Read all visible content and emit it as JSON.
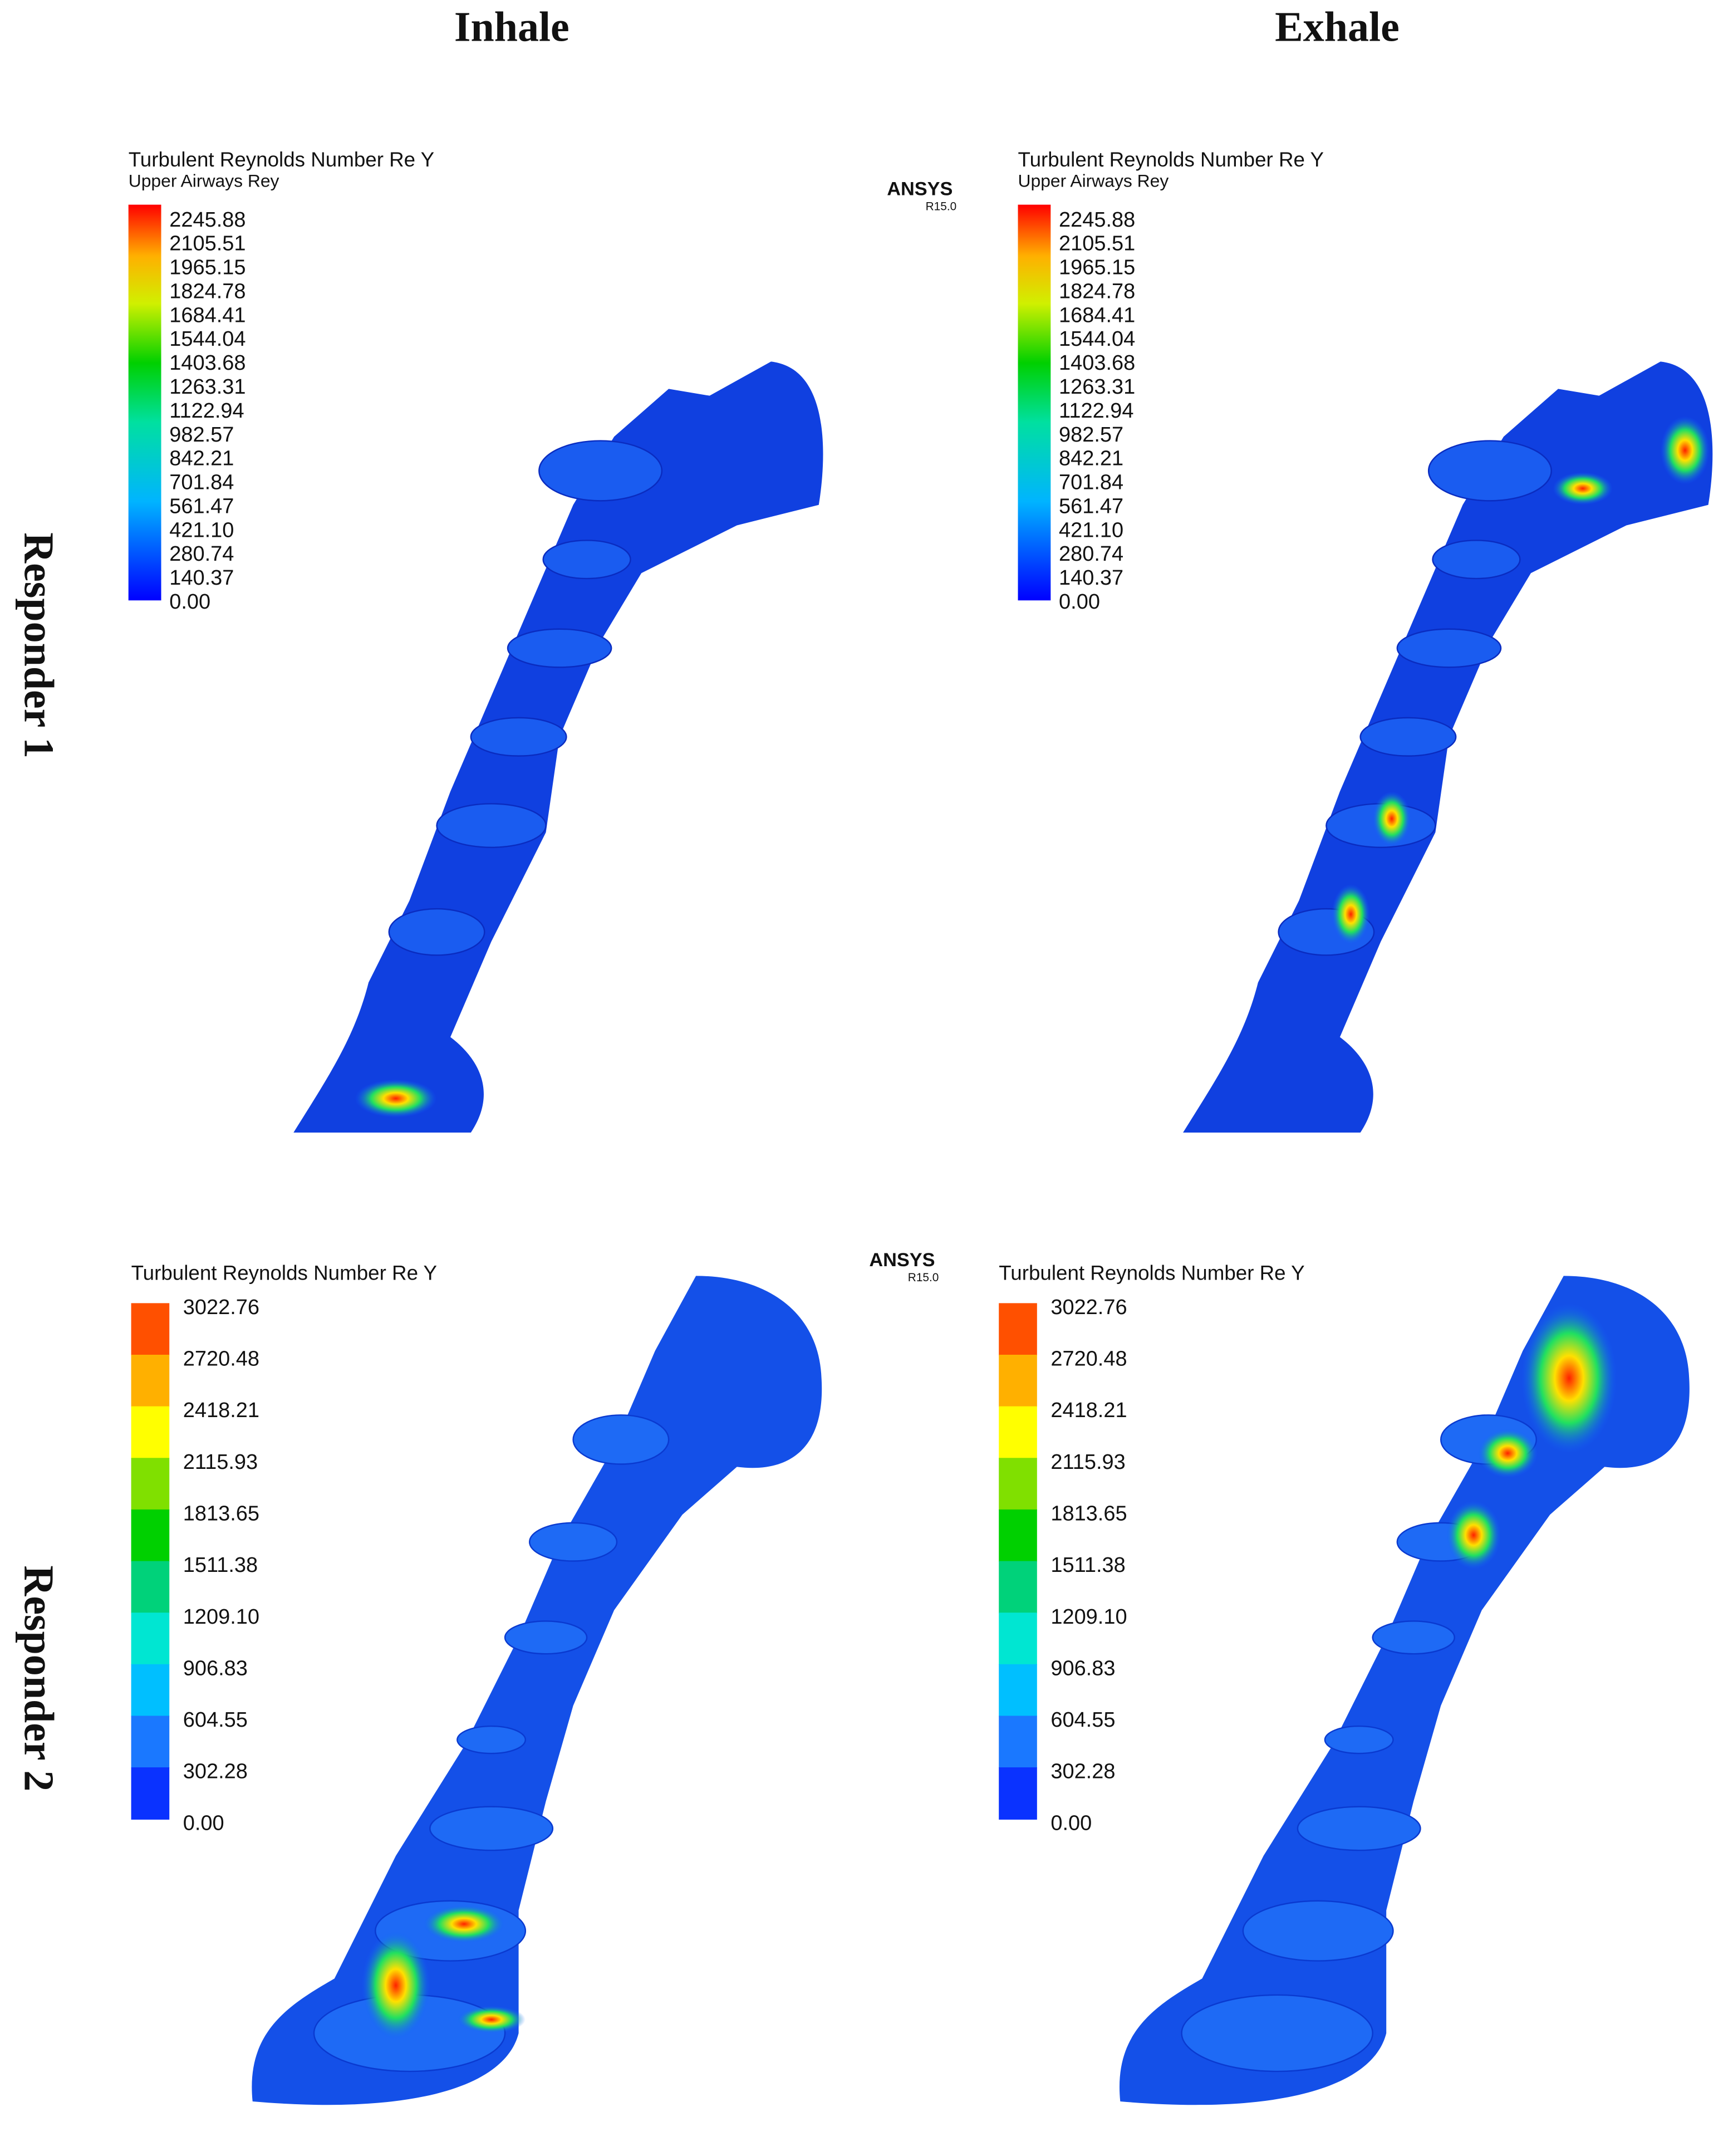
{
  "column_labels": [
    "Inhale",
    "Exhale"
  ],
  "row_labels": [
    "Responder 1",
    "Responder 2"
  ],
  "panels": [
    {
      "title": "Turbulent Reynolds Number Re Y",
      "subtitle": "Upper Airways Rey",
      "ticks": [
        "2245.88",
        "2105.51",
        "1965.15",
        "1824.78",
        "1684.41",
        "1544.04",
        "1403.68",
        "1263.31",
        "1122.94",
        "982.57",
        "842.21",
        "701.84",
        "561.47",
        "421.10",
        "280.74",
        "140.37",
        "0.00"
      ]
    },
    {
      "title": "Turbulent Reynolds Number Re Y",
      "subtitle": "Upper Airways Rey",
      "ticks": [
        "2245.88",
        "2105.51",
        "1965.15",
        "1824.78",
        "1684.41",
        "1544.04",
        "1403.68",
        "1263.31",
        "1122.94",
        "982.57",
        "842.21",
        "701.84",
        "561.47",
        "421.10",
        "280.74",
        "140.37",
        "0.00"
      ]
    },
    {
      "title": "Turbulent Reynolds Number Re Y",
      "ticks": [
        "3022.76",
        "2720.48",
        "2418.21",
        "2115.93",
        "1813.65",
        "1511.38",
        "1209.10",
        "906.83",
        "604.55",
        "302.28",
        "0.00"
      ]
    },
    {
      "title": "Turbulent Reynolds Number Re Y",
      "ticks": [
        "3022.76",
        "2720.48",
        "2418.21",
        "2115.93",
        "1813.65",
        "1511.38",
        "1209.10",
        "906.83",
        "604.55",
        "302.28",
        "0.00"
      ]
    }
  ],
  "logos": [
    {
      "name": "ANSYS",
      "version": "R15.0"
    },
    {
      "name": "ANSYS",
      "version": "R15.0"
    }
  ]
}
